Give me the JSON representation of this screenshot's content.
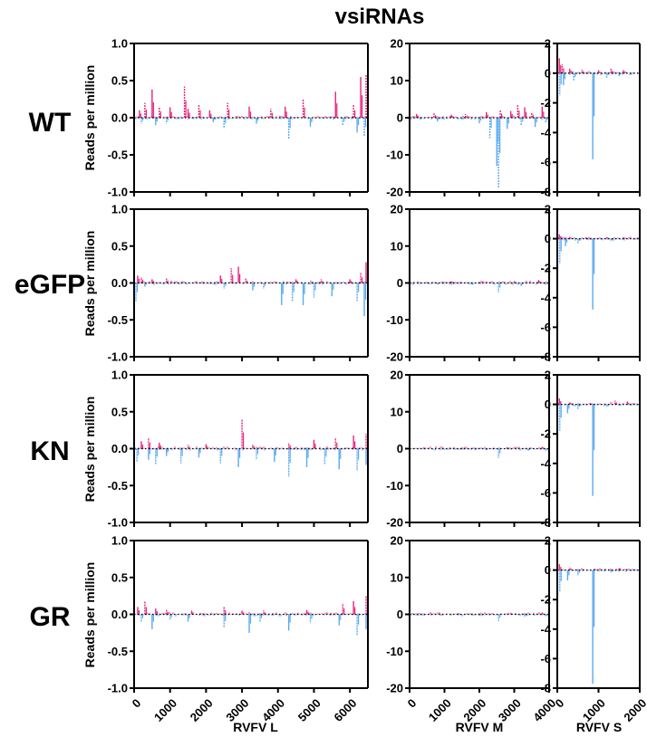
{
  "figure": {
    "title": "vsiRNAs",
    "ylabel": "Reads per million",
    "rows": [
      "WT",
      "eGFP",
      "KN",
      "GR"
    ]
  },
  "colors": {
    "sense": "#e8247c",
    "antisense": "#5aaaf0",
    "zero_line": "#000000"
  },
  "chart_data": [
    {
      "type": "bar",
      "segment": "RVFV L",
      "xlabel": "RVFV L",
      "xlim": [
        0,
        6500
      ],
      "xticks": [
        0,
        1000,
        2000,
        3000,
        4000,
        5000,
        6000
      ],
      "ylim": [
        -1.0,
        1.0
      ],
      "yticks": [
        "1.0",
        "0.5",
        "0.0",
        "-0.5",
        "-1.0"
      ],
      "panels": [
        {
          "row": "WT",
          "sense_peaks": [
            [
              150,
              0.1
            ],
            [
              300,
              0.2
            ],
            [
              500,
              0.38
            ],
            [
              700,
              0.15
            ],
            [
              1000,
              0.14
            ],
            [
              1400,
              0.42
            ],
            [
              1500,
              0.12
            ],
            [
              1800,
              0.18
            ],
            [
              2100,
              0.1
            ],
            [
              2600,
              0.2
            ],
            [
              3200,
              0.15
            ],
            [
              3800,
              0.12
            ],
            [
              4200,
              0.15
            ],
            [
              4700,
              0.25
            ],
            [
              5600,
              0.35
            ],
            [
              6100,
              0.18
            ],
            [
              6300,
              0.55
            ],
            [
              6450,
              0.58
            ]
          ],
          "antisense_peaks": [
            [
              200,
              -0.08
            ],
            [
              600,
              -0.1
            ],
            [
              900,
              -0.08
            ],
            [
              2200,
              -0.06
            ],
            [
              2500,
              -0.15
            ],
            [
              3400,
              -0.08
            ],
            [
              4300,
              -0.28
            ],
            [
              4900,
              -0.12
            ],
            [
              5800,
              -0.1
            ],
            [
              6200,
              -0.2
            ],
            [
              6400,
              -0.25
            ]
          ]
        },
        {
          "row": "eGFP",
          "sense_peaks": [
            [
              100,
              0.1
            ],
            [
              200,
              0.08
            ],
            [
              500,
              0.05
            ],
            [
              900,
              0.06
            ],
            [
              2400,
              0.1
            ],
            [
              2700,
              0.2
            ],
            [
              2900,
              0.22
            ],
            [
              3100,
              0.06
            ],
            [
              4500,
              0.05
            ],
            [
              5200,
              0.05
            ],
            [
              6000,
              0.05
            ],
            [
              6300,
              0.14
            ],
            [
              6450,
              0.28
            ]
          ],
          "antisense_peaks": [
            [
              50,
              -0.25
            ],
            [
              300,
              -0.05
            ],
            [
              2500,
              -0.08
            ],
            [
              3300,
              -0.1
            ],
            [
              3600,
              -0.08
            ],
            [
              4100,
              -0.3
            ],
            [
              4400,
              -0.25
            ],
            [
              4700,
              -0.3
            ],
            [
              5000,
              -0.2
            ],
            [
              5500,
              -0.18
            ],
            [
              6200,
              -0.25
            ],
            [
              6400,
              -0.45
            ]
          ]
        },
        {
          "row": "KN",
          "sense_peaks": [
            [
              200,
              0.1
            ],
            [
              400,
              0.15
            ],
            [
              700,
              0.08
            ],
            [
              1500,
              0.05
            ],
            [
              2000,
              0.06
            ],
            [
              3000,
              0.4
            ],
            [
              3300,
              0.05
            ],
            [
              4300,
              0.08
            ],
            [
              5000,
              0.12
            ],
            [
              5600,
              0.15
            ],
            [
              6100,
              0.18
            ],
            [
              6450,
              0.2
            ]
          ],
          "antisense_peaks": [
            [
              80,
              -0.18
            ],
            [
              400,
              -0.15
            ],
            [
              600,
              -0.22
            ],
            [
              900,
              -0.1
            ],
            [
              1300,
              -0.2
            ],
            [
              1800,
              -0.12
            ],
            [
              2400,
              -0.2
            ],
            [
              2900,
              -0.25
            ],
            [
              3400,
              -0.15
            ],
            [
              3900,
              -0.18
            ],
            [
              4300,
              -0.38
            ],
            [
              4800,
              -0.25
            ],
            [
              5300,
              -0.22
            ],
            [
              5700,
              -0.28
            ],
            [
              6200,
              -0.3
            ],
            [
              6450,
              -0.22
            ]
          ]
        },
        {
          "row": "GR",
          "sense_peaks": [
            [
              100,
              0.1
            ],
            [
              300,
              0.18
            ],
            [
              600,
              0.08
            ],
            [
              900,
              0.06
            ],
            [
              1600,
              0.05
            ],
            [
              2500,
              0.1
            ],
            [
              3000,
              0.05
            ],
            [
              3600,
              0.05
            ],
            [
              4800,
              0.06
            ],
            [
              5800,
              0.15
            ],
            [
              6100,
              0.18
            ],
            [
              6450,
              0.25
            ]
          ],
          "antisense_peaks": [
            [
              200,
              -0.1
            ],
            [
              500,
              -0.2
            ],
            [
              1000,
              -0.08
            ],
            [
              1500,
              -0.1
            ],
            [
              2500,
              -0.18
            ],
            [
              3200,
              -0.25
            ],
            [
              3500,
              -0.1
            ],
            [
              4300,
              -0.22
            ],
            [
              4900,
              -0.12
            ],
            [
              5700,
              -0.15
            ],
            [
              6200,
              -0.28
            ],
            [
              6450,
              -0.2
            ]
          ]
        }
      ]
    },
    {
      "type": "bar",
      "segment": "RVFV M",
      "xlabel": "RVFV M",
      "xlim": [
        0,
        4000
      ],
      "xticks": [
        0,
        1000,
        2000,
        3000,
        4000
      ],
      "ylim": [
        -20,
        20
      ],
      "yticks": [
        "20",
        "10",
        "0",
        "-10",
        "-20"
      ],
      "panels": [
        {
          "row": "WT",
          "sense_peaks": [
            [
              200,
              1
            ],
            [
              700,
              1.2
            ],
            [
              1200,
              0.8
            ],
            [
              1600,
              1
            ],
            [
              2200,
              1.5
            ],
            [
              2600,
              2
            ],
            [
              2900,
              1.8
            ],
            [
              3100,
              3.5
            ],
            [
              3300,
              2.8
            ],
            [
              3500,
              1.5
            ],
            [
              3800,
              3
            ]
          ],
          "antisense_peaks": [
            [
              300,
              -0.8
            ],
            [
              800,
              -1
            ],
            [
              1500,
              -0.8
            ],
            [
              2000,
              -1.5
            ],
            [
              2300,
              -5.5
            ],
            [
              2500,
              -13
            ],
            [
              2550,
              -19
            ],
            [
              2800,
              -3
            ],
            [
              3200,
              -2
            ],
            [
              3600,
              -2.5
            ],
            [
              3900,
              -1.5
            ]
          ]
        },
        {
          "row": "eGFP",
          "sense_peaks": [
            [
              500,
              0.3
            ],
            [
              1200,
              0.4
            ],
            [
              2000,
              0.3
            ],
            [
              3000,
              0.5
            ],
            [
              3700,
              0.8
            ]
          ],
          "antisense_peaks": [
            [
              800,
              -0.4
            ],
            [
              1800,
              -0.5
            ],
            [
              2550,
              -2.5
            ],
            [
              3200,
              -0.8
            ],
            [
              3900,
              -0.5
            ]
          ]
        },
        {
          "row": "KN",
          "sense_peaks": [
            [
              400,
              0.3
            ],
            [
              1500,
              0.3
            ],
            [
              2800,
              0.4
            ],
            [
              3800,
              0.6
            ]
          ],
          "antisense_peaks": [
            [
              1000,
              -0.3
            ],
            [
              2200,
              -0.4
            ],
            [
              2550,
              -2.5
            ],
            [
              3400,
              -0.6
            ],
            [
              3900,
              -0.8
            ]
          ]
        },
        {
          "row": "GR",
          "sense_peaks": [
            [
              600,
              0.3
            ],
            [
              1400,
              0.3
            ],
            [
              2900,
              0.4
            ],
            [
              3800,
              0.5
            ]
          ],
          "antisense_peaks": [
            [
              900,
              -0.3
            ],
            [
              2000,
              -0.4
            ],
            [
              2550,
              -1.8
            ],
            [
              3300,
              -0.6
            ],
            [
              3900,
              -0.7
            ]
          ]
        }
      ]
    },
    {
      "type": "bar",
      "segment": "RVFV S",
      "xlabel": "RVFV S",
      "xlim": [
        0,
        2000
      ],
      "xticks": [
        0,
        1000,
        2000
      ],
      "ylim": [
        -8,
        2
      ],
      "yticks": [
        "2",
        "0",
        "-2",
        "-4",
        "-6",
        "-8"
      ],
      "panels": [
        {
          "row": "WT",
          "sense_peaks": [
            [
              50,
              1.0
            ],
            [
              120,
              0.6
            ],
            [
              300,
              0.3
            ],
            [
              600,
              0.25
            ],
            [
              1000,
              0.2
            ],
            [
              1300,
              0.3
            ],
            [
              1600,
              0.2
            ]
          ],
          "antisense_peaks": [
            [
              60,
              -1.5
            ],
            [
              150,
              -0.8
            ],
            [
              400,
              -0.5
            ],
            [
              860,
              -5.8
            ],
            [
              1200,
              -0.3
            ],
            [
              1500,
              -0.2
            ]
          ]
        },
        {
          "row": "eGFP",
          "sense_peaks": [
            [
              50,
              0.3
            ],
            [
              300,
              0.15
            ],
            [
              700,
              0.1
            ],
            [
              1200,
              0.1
            ],
            [
              1600,
              0.1
            ]
          ],
          "antisense_peaks": [
            [
              60,
              -1.7
            ],
            [
              200,
              -0.5
            ],
            [
              500,
              -0.3
            ],
            [
              860,
              -4.8
            ],
            [
              1300,
              -0.2
            ]
          ]
        },
        {
          "row": "KN",
          "sense_peaks": [
            [
              50,
              0.4
            ],
            [
              300,
              0.15
            ],
            [
              800,
              0.1
            ],
            [
              1400,
              0.25
            ],
            [
              1700,
              0.2
            ]
          ],
          "antisense_peaks": [
            [
              60,
              -1.8
            ],
            [
              250,
              -0.6
            ],
            [
              500,
              -0.3
            ],
            [
              860,
              -6.2
            ],
            [
              1200,
              -0.2
            ]
          ]
        },
        {
          "row": "GR",
          "sense_peaks": [
            [
              50,
              0.4
            ],
            [
              300,
              0.2
            ],
            [
              900,
              0.1
            ],
            [
              1500,
              0.15
            ]
          ],
          "antisense_peaks": [
            [
              60,
              -1.5
            ],
            [
              250,
              -0.7
            ],
            [
              500,
              -0.4
            ],
            [
              860,
              -7.7
            ],
            [
              1300,
              -0.2
            ]
          ]
        }
      ]
    }
  ]
}
